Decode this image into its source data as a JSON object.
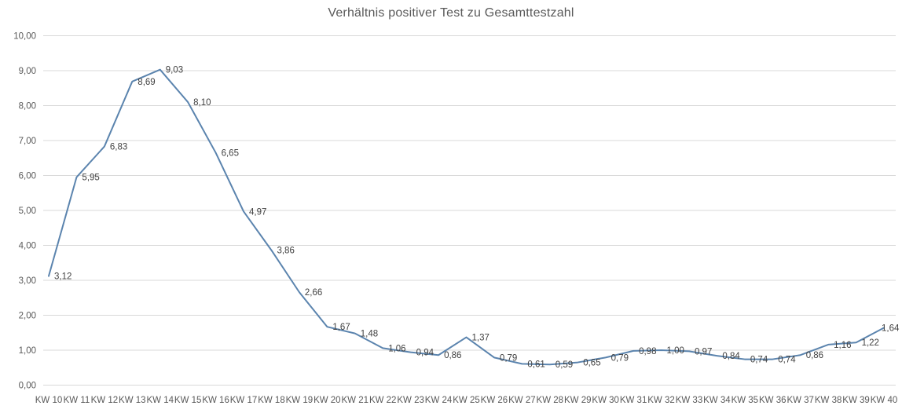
{
  "chart_data": {
    "type": "line",
    "title": "Verhältnis positiver Test zu Gesamttestzahl",
    "xlabel": "",
    "ylabel": "",
    "categories": [
      "KW 10",
      "KW 11",
      "KW 12",
      "KW 13",
      "KW 14",
      "KW 15",
      "KW 16",
      "KW 17",
      "KW 18",
      "KW 19",
      "KW 20",
      "KW 21",
      "KW 22",
      "KW 23",
      "KW 24",
      "KW 25",
      "KW 26",
      "KW 27",
      "KW 28",
      "KW 29",
      "KW 30",
      "KW 31",
      "KW 32",
      "KW 33",
      "KW 34",
      "KW 35",
      "KW 36",
      "KW 37",
      "KW 38",
      "KW 39",
      "KW 40"
    ],
    "values": [
      3.12,
      5.95,
      6.83,
      8.69,
      9.03,
      8.1,
      6.65,
      4.97,
      3.86,
      2.66,
      1.67,
      1.48,
      1.06,
      0.94,
      0.86,
      1.37,
      0.79,
      0.61,
      0.59,
      0.65,
      0.79,
      0.98,
      1.0,
      0.97,
      0.84,
      0.74,
      0.74,
      0.86,
      1.16,
      1.22,
      1.64
    ],
    "value_labels": [
      "3,12",
      "5,95",
      "6,83",
      "8,69",
      "9,03",
      "8,10",
      "6,65",
      "4,97",
      "3,86",
      "2,66",
      "1,67",
      "1,48",
      "1,06",
      "0,94",
      "0,86",
      "1,37",
      "0,79",
      "0,61",
      "0,59",
      "0,65",
      "0,79",
      "0,98",
      "1,00",
      "0,97",
      "0,84",
      "0,74",
      "0,74",
      "0,86",
      "1,16",
      "1,22",
      "1,64"
    ],
    "ylim": [
      0,
      10
    ],
    "yticks": [
      0,
      1,
      2,
      3,
      4,
      5,
      6,
      7,
      8,
      9,
      10
    ],
    "ytick_labels": [
      "0,00",
      "1,00",
      "2,00",
      "3,00",
      "4,00",
      "5,00",
      "6,00",
      "7,00",
      "8,00",
      "9,00",
      "10,00"
    ],
    "grid": "horizontal",
    "legend": "none",
    "colors": {
      "line": "#5B84AE",
      "gridline": "#D9D9D9",
      "axis_text": "#595959",
      "data_label_text": "#404040",
      "title_text": "#595959",
      "background": "#FFFFFF"
    }
  }
}
